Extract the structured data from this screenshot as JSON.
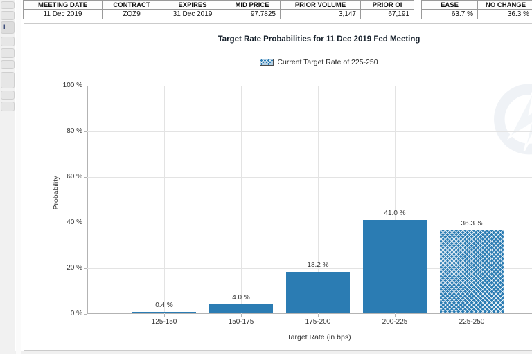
{
  "contract_table": {
    "columns": [
      "MEETING DATE",
      "CONTRACT",
      "EXPIRES",
      "MID PRICE",
      "PRIOR VOLUME",
      "PRIOR OI"
    ],
    "row": [
      "11 Dec 2019",
      "ZQZ9",
      "31 Dec 2019",
      "97.7825",
      "3,147",
      "67,191"
    ]
  },
  "probability_table": {
    "columns": [
      "EASE",
      "NO CHANGE"
    ],
    "row": [
      "63.7 %",
      "36.3 %"
    ]
  },
  "sidebar": {
    "truncated_label": "I"
  },
  "chart": {
    "title": "Target Rate Probabilities for 11 Dec 2019 Fed Meeting",
    "legend_label": "Current Target Rate of 225-250",
    "y_axis_title": "Probability",
    "x_axis_title": "Target Rate (in bps)",
    "y_tick_labels": [
      "100 %",
      "80 %",
      "60 %",
      "40 %",
      "20 %",
      "0 %"
    ]
  },
  "chart_data": {
    "type": "bar",
    "categories": [
      "125-150",
      "150-175",
      "175-200",
      "200-225",
      "225-250"
    ],
    "values": [
      0.4,
      4.0,
      18.2,
      41.0,
      36.3
    ],
    "value_labels": [
      "0.4 %",
      "4.0 %",
      "18.2 %",
      "41.0 %",
      "36.3 %"
    ],
    "title": "Target Rate Probabilities for 11 Dec 2019 Fed Meeting",
    "xlabel": "Target Rate (in bps)",
    "ylabel": "Probability",
    "ylim": [
      0,
      100
    ],
    "y_tick_step": 20,
    "grid": true,
    "legend_position": "top-center",
    "bar_color": "#2b7cb3",
    "hatched_category": "225-250",
    "hatched_meaning": "Current Target Rate"
  }
}
